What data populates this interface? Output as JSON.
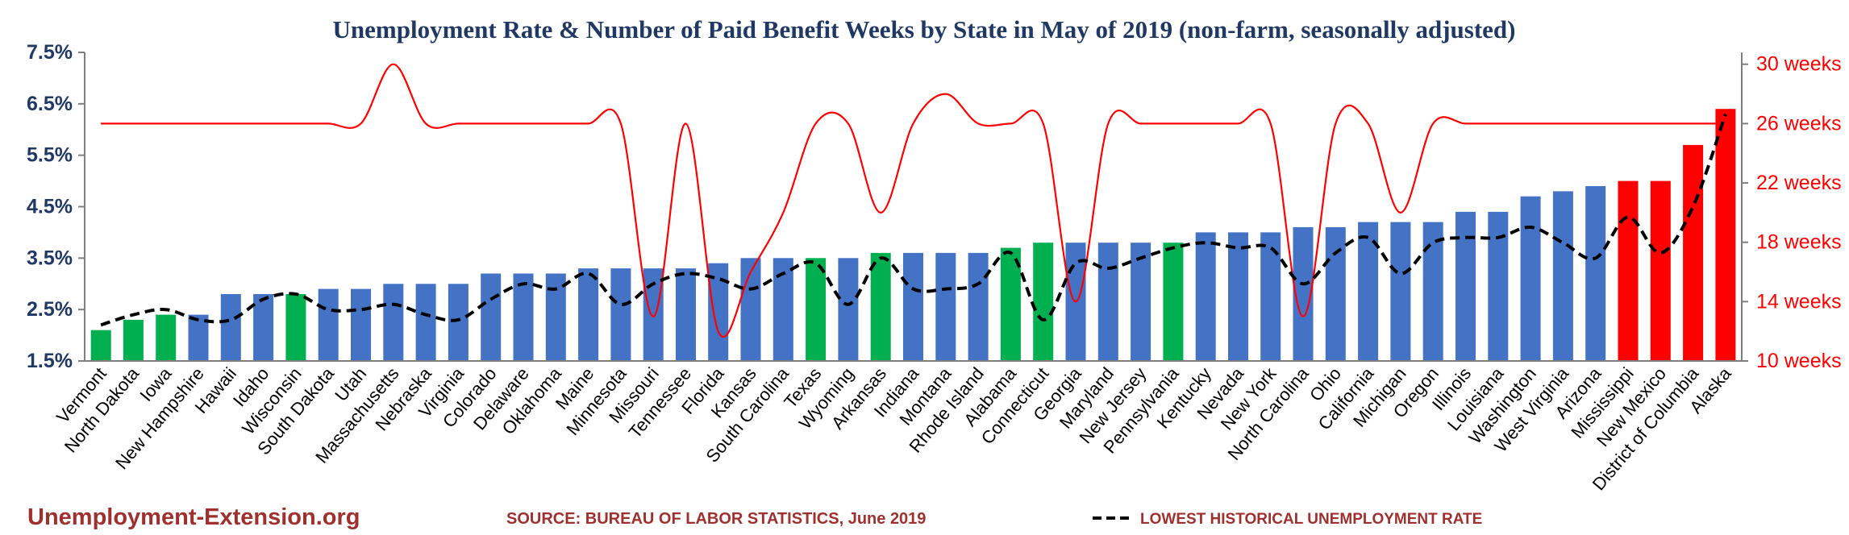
{
  "chart_data": {
    "type": "bar",
    "title": "Unemployment Rate & Number of Paid Benefit Weeks by State in May of 2019 (non-farm, seasonally adjusted)",
    "categories": [
      "Vermont",
      "North Dakota",
      "Iowa",
      "New Hampshire",
      "Hawaii",
      "Idaho",
      "Wisconsin",
      "South Dakota",
      "Utah",
      "Massachusetts",
      "Nebraska",
      "Virginia",
      "Colorado",
      "Delaware",
      "Oklahoma",
      "Maine",
      "Minnesota",
      "Missouri",
      "Tennessee",
      "Florida",
      "Kansas",
      "South Carolina",
      "Texas",
      "Wyoming",
      "Arkansas",
      "Indiana",
      "Montana",
      "Rhode Island",
      "Alabama",
      "Connecticut",
      "Georgia",
      "Maryland",
      "New Jersey",
      "Pennsylvania",
      "Kentucky",
      "Nevada",
      "New York",
      "North Carolina",
      "Ohio",
      "California",
      "Michigan",
      "Oregon",
      "Illinois",
      "Louisiana",
      "Washington",
      "West Virginia",
      "Arizona",
      "Mississippi",
      "New Mexico",
      "District of Columbia",
      "Alaska"
    ],
    "series": [
      {
        "name": "Unemployment Rate",
        "axis": "left",
        "values": [
          2.1,
          2.3,
          2.4,
          2.4,
          2.8,
          2.8,
          2.8,
          2.9,
          2.9,
          3.0,
          3.0,
          3.0,
          3.2,
          3.2,
          3.2,
          3.3,
          3.3,
          3.3,
          3.3,
          3.4,
          3.5,
          3.5,
          3.5,
          3.5,
          3.6,
          3.6,
          3.6,
          3.6,
          3.7,
          3.8,
          3.8,
          3.8,
          3.8,
          3.8,
          4.0,
          4.0,
          4.0,
          4.1,
          4.1,
          4.2,
          4.2,
          4.2,
          4.4,
          4.4,
          4.7,
          4.8,
          4.9,
          5.0,
          5.0,
          5.7,
          6.4
        ],
        "colors": [
          "#00B050",
          "#00B050",
          "#00B050",
          "#4472C4",
          "#4472C4",
          "#4472C4",
          "#00B050",
          "#4472C4",
          "#4472C4",
          "#4472C4",
          "#4472C4",
          "#4472C4",
          "#4472C4",
          "#4472C4",
          "#4472C4",
          "#4472C4",
          "#4472C4",
          "#4472C4",
          "#4472C4",
          "#4472C4",
          "#4472C4",
          "#4472C4",
          "#00B050",
          "#4472C4",
          "#00B050",
          "#4472C4",
          "#4472C4",
          "#4472C4",
          "#00B050",
          "#00B050",
          "#4472C4",
          "#4472C4",
          "#4472C4",
          "#00B050",
          "#4472C4",
          "#4472C4",
          "#4472C4",
          "#4472C4",
          "#4472C4",
          "#4472C4",
          "#4472C4",
          "#4472C4",
          "#4472C4",
          "#4472C4",
          "#4472C4",
          "#4472C4",
          "#4472C4",
          "#FF0000",
          "#FF0000",
          "#FF0000",
          "#FF0000"
        ]
      },
      {
        "name": "Lowest Historical Unemployment Rate",
        "axis": "left",
        "style": "dashed",
        "color": "#000000",
        "values": [
          2.2,
          2.4,
          2.5,
          2.3,
          2.3,
          2.7,
          2.8,
          2.5,
          2.5,
          2.6,
          2.4,
          2.3,
          2.7,
          3.0,
          2.9,
          3.2,
          2.6,
          3.0,
          3.2,
          3.1,
          2.9,
          3.2,
          3.4,
          2.6,
          3.5,
          2.9,
          2.9,
          3.0,
          3.6,
          2.3,
          3.4,
          3.3,
          3.5,
          3.7,
          3.8,
          3.7,
          3.7,
          3.0,
          3.6,
          3.9,
          3.2,
          3.8,
          3.9,
          3.9,
          4.1,
          3.8,
          3.5,
          4.3,
          3.6,
          4.5,
          6.3
        ]
      },
      {
        "name": "Number of Paid Benefit Weeks",
        "axis": "right",
        "color": "#FF0000",
        "values": [
          26,
          26,
          26,
          26,
          26,
          26,
          26,
          26,
          26,
          30,
          26,
          26,
          26,
          26,
          26,
          26,
          26,
          13,
          26,
          12,
          16,
          20,
          26,
          26,
          20,
          26,
          28,
          26,
          26,
          26,
          14,
          26,
          26,
          26,
          26,
          26,
          26,
          13,
          26,
          26,
          20,
          26,
          26,
          26,
          26,
          26,
          26,
          26,
          26,
          26,
          26
        ]
      }
    ],
    "y_left": {
      "ticks": [
        "1.5%",
        "2.5%",
        "3.5%",
        "4.5%",
        "5.5%",
        "6.5%",
        "7.5%"
      ],
      "ylim": [
        1.5,
        7.5
      ]
    },
    "y_right": {
      "ticks": [
        "10 weeks",
        "14 weeks",
        "18 weeks",
        "22 weeks",
        "26 weeks",
        "30 weeks"
      ],
      "ylim": [
        10,
        30.8
      ]
    },
    "grid": false,
    "legend": {
      "position": "bottom-right",
      "label": "LOWEST HISTORICAL UNEMPLOYMENT RATE"
    },
    "annotations": {
      "brand": "Unemployment-Extension.org",
      "source": "SOURCE: BUREAU OF LABOR STATISTICS, June 2019"
    }
  }
}
